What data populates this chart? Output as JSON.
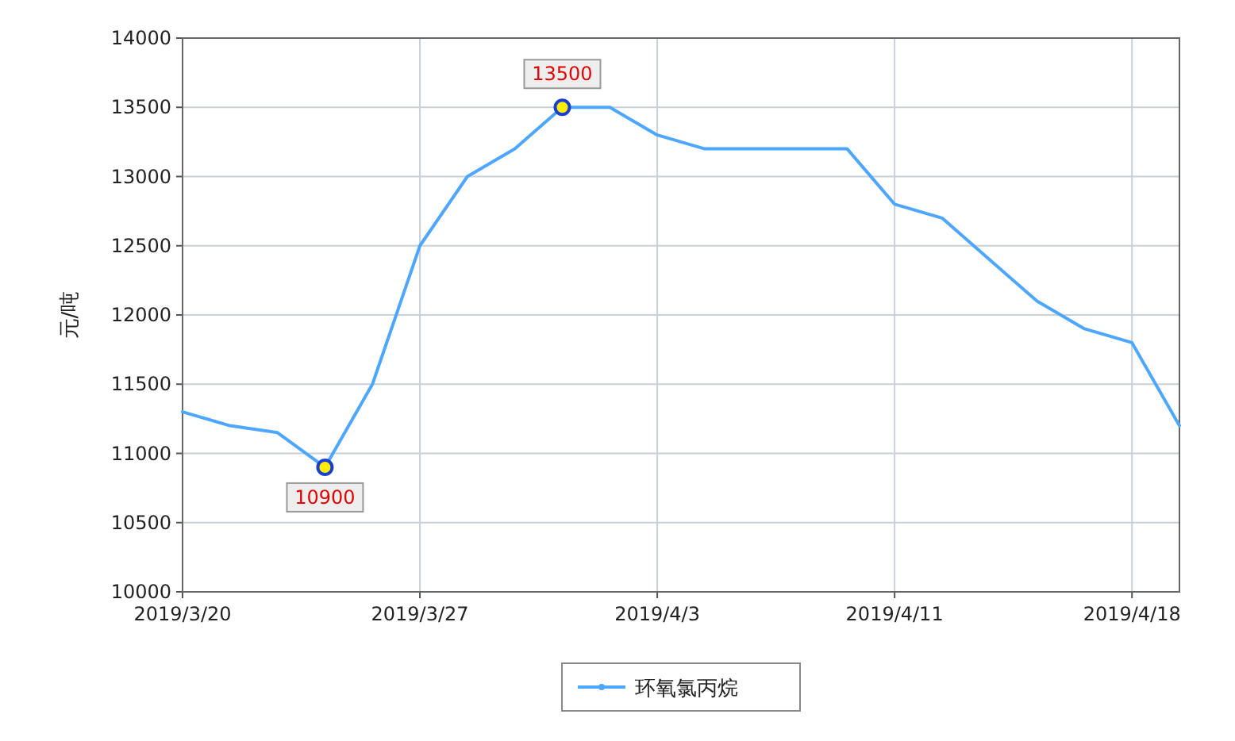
{
  "chart_data": {
    "type": "line",
    "ylabel": "元/吨",
    "categories": [
      "2019/3/20",
      null,
      null,
      null,
      null,
      "2019/3/27",
      null,
      null,
      null,
      null,
      "2019/4/3",
      null,
      null,
      null,
      null,
      "2019/4/11",
      null,
      null,
      null,
      null,
      "2019/4/18",
      null
    ],
    "series": [
      {
        "name": "环氧氯丙烷",
        "color": "#4da6ff",
        "values": [
          11300,
          11200,
          11150,
          10900,
          11500,
          12500,
          13000,
          13200,
          13500,
          13500,
          13300,
          13200,
          13200,
          13200,
          13200,
          12800,
          12700,
          12400,
          12100,
          11900,
          11800,
          11200
        ],
        "value_labels": [
          null,
          null,
          null,
          "10900",
          null,
          null,
          null,
          null,
          "13500",
          null,
          null,
          null,
          null,
          null,
          null,
          null,
          null,
          null,
          null,
          null,
          null,
          null
        ]
      }
    ],
    "ylim": [
      10000,
      14000
    ],
    "yticks": [
      10000,
      10500,
      11000,
      11500,
      12000,
      12500,
      13000,
      13500,
      14000
    ],
    "grid": true,
    "legend": "bottom"
  }
}
